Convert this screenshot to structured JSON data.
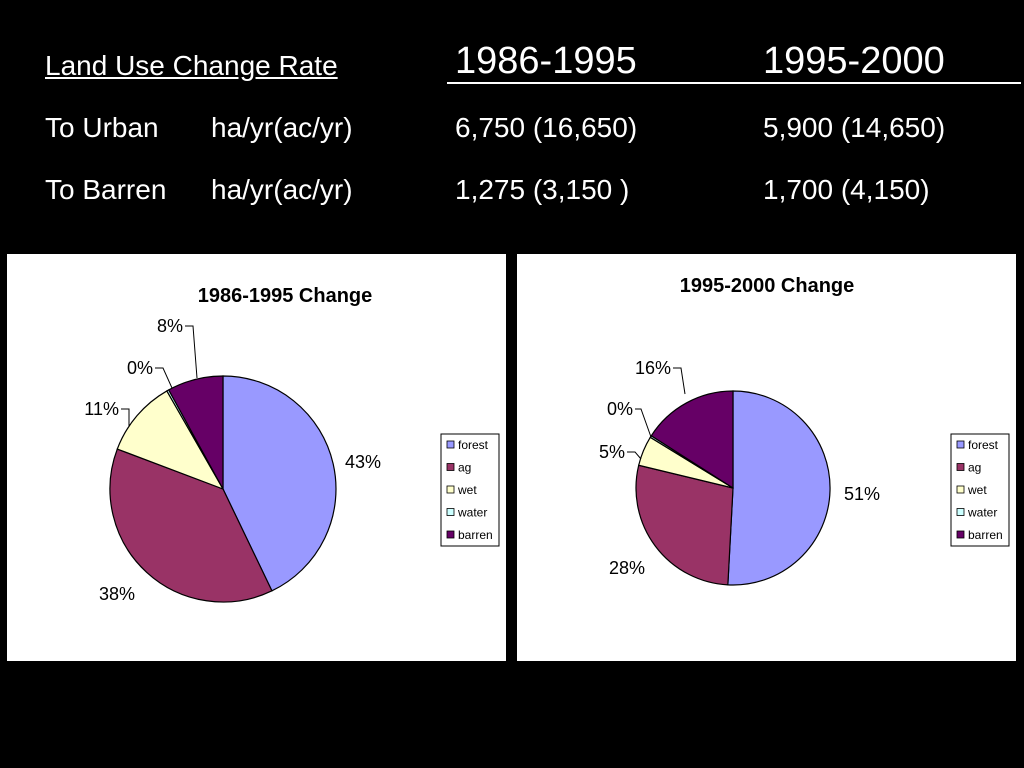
{
  "table": {
    "header_label": "Land Use Change Rate",
    "col1": "1986-1995",
    "col2": "1995-2000",
    "rows": [
      {
        "label": "To Urban",
        "unit": "ha/yr(ac/yr)",
        "v1": "6,750 (16,650)",
        "v2": "5,900 (14,650)"
      },
      {
        "label": "To Barren",
        "unit": "ha/yr(ac/yr)",
        "v1": "1,275 (3,150 )",
        "v2": "1,700 (4,150)"
      }
    ]
  },
  "chart_data": [
    {
      "type": "pie",
      "title": "1986-1995 Change",
      "categories": [
        "forest",
        "ag",
        "wet",
        "water",
        "barren"
      ],
      "values": [
        43,
        38,
        11,
        0.3,
        8
      ],
      "labels": [
        "43%",
        "38%",
        "11%",
        "0%",
        "8%"
      ],
      "colors": [
        "#9999ff",
        "#993366",
        "#ffffcc",
        "#ccffff",
        "#660066"
      ],
      "legend": "right"
    },
    {
      "type": "pie",
      "title": "1995-2000 Change",
      "categories": [
        "forest",
        "ag",
        "wet",
        "water",
        "barren"
      ],
      "values": [
        51,
        28,
        5,
        0.3,
        16
      ],
      "labels": [
        "51%",
        "28%",
        "5%",
        "0%",
        "16%"
      ],
      "colors": [
        "#9999ff",
        "#993366",
        "#ffffcc",
        "#ccffff",
        "#660066"
      ],
      "legend": "right"
    }
  ]
}
